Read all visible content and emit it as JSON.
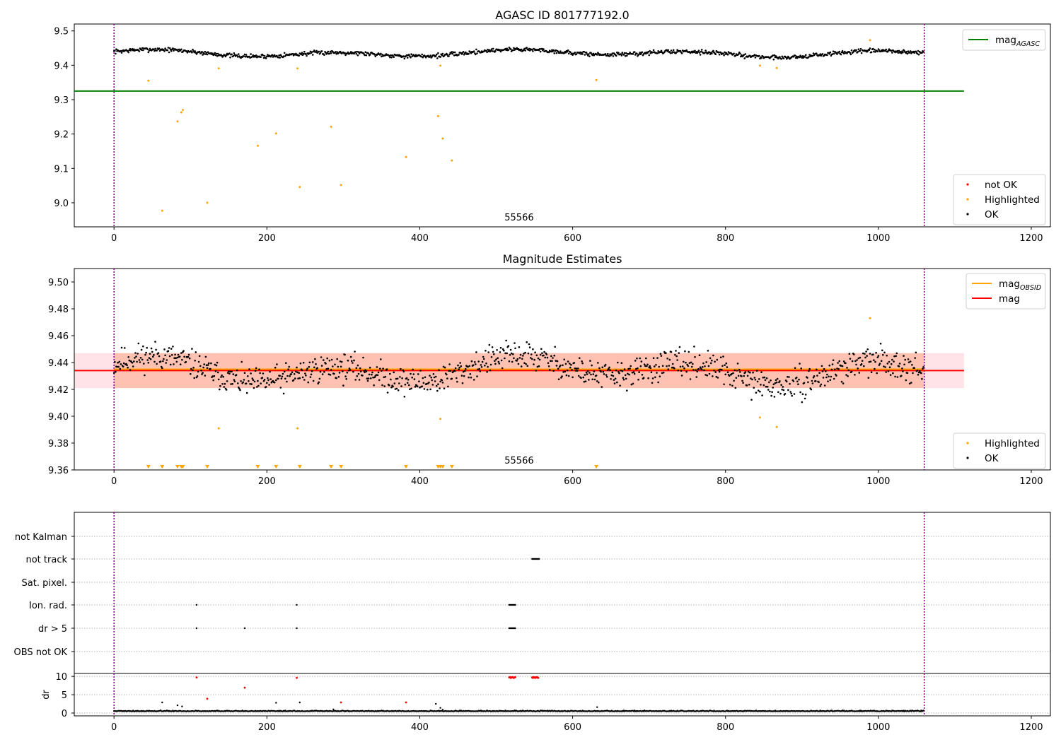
{
  "colors": {
    "ok": "#000000",
    "highlighted": "#ffa500",
    "not_ok": "#ff0000",
    "mag_agasc": "#008000",
    "mag_obsid": "#ffa500",
    "mag": "#ff0000",
    "obs_boundary": "#800080",
    "band_outer": "#ffc0cb",
    "band_inner": "#ffa07a"
  },
  "chart_data": [
    {
      "type": "scatter",
      "title": "AGASC ID 801777192.0",
      "xlim": [
        -52,
        1225
      ],
      "ylim": [
        8.93,
        9.52
      ],
      "x_ticks": [
        0,
        200,
        400,
        600,
        800,
        1000,
        1200
      ],
      "y_ticks": [
        9.0,
        9.1,
        9.2,
        9.3,
        9.4,
        9.5
      ],
      "y_tick_labels": [
        "9.0",
        "9.1",
        "9.2",
        "9.3",
        "9.4",
        "9.5"
      ],
      "obs_boundaries": [
        0,
        1060
      ],
      "obsid_annotation": {
        "text": "55566",
        "x": 530
      },
      "hlines": [
        {
          "name": "magAGASC",
          "y": 9.325,
          "x_range": [
            -52,
            1112
          ],
          "color": "#008000"
        }
      ],
      "ok_series": {
        "n": 1060,
        "mean": 9.435,
        "amplitude": 0.012,
        "noise": 0.009
      },
      "highlighted": {
        "x": [
          45,
          63,
          83,
          88,
          90,
          122,
          137,
          188,
          212,
          240,
          243,
          284,
          297,
          382,
          424,
          427,
          430,
          442,
          631,
          845,
          867,
          989
        ],
        "y": [
          9.355,
          8.977,
          9.237,
          9.263,
          9.27,
          9.0,
          9.391,
          9.166,
          9.202,
          9.391,
          9.046,
          9.221,
          9.052,
          9.133,
          9.252,
          9.399,
          9.187,
          9.123,
          9.357,
          9.399,
          9.392,
          9.473
        ]
      },
      "legend_upper": [
        {
          "label": "mag",
          "sub": "AGASC",
          "color": "#008000"
        }
      ],
      "legend_lower": [
        {
          "label": "not OK",
          "color": "#ff0000"
        },
        {
          "label": "Highlighted",
          "color": "#ffa500"
        },
        {
          "label": "OK",
          "color": "#000000"
        }
      ]
    },
    {
      "type": "scatter",
      "title": "Magnitude Estimates",
      "xlim": [
        -52,
        1225
      ],
      "ylim": [
        9.36,
        9.51
      ],
      "x_ticks": [
        0,
        200,
        400,
        600,
        800,
        1000,
        1200
      ],
      "y_ticks": [
        9.36,
        9.38,
        9.4,
        9.42,
        9.44,
        9.46,
        9.48,
        9.5
      ],
      "y_tick_labels": [
        "9.36",
        "9.38",
        "9.40",
        "9.42",
        "9.44",
        "9.46",
        "9.48",
        "9.50"
      ],
      "obs_boundaries": [
        0,
        1060
      ],
      "obsid_annotation": {
        "text": "55566",
        "x": 530
      },
      "bands": [
        {
          "y_range": [
            9.421,
            9.447
          ],
          "x_range": [
            -52,
            1112
          ],
          "color": "#ffc0cb"
        },
        {
          "y_range": [
            9.421,
            9.447
          ],
          "x_range": [
            0,
            1060
          ],
          "color": "#ffa07a"
        }
      ],
      "hlines": [
        {
          "name": "magOBSID",
          "y": 9.435,
          "x_range": [
            0,
            1060
          ],
          "color": "#ffa500"
        },
        {
          "name": "mag",
          "y": 9.434,
          "x_range": [
            -52,
            1112
          ],
          "color": "#ff0000"
        }
      ],
      "ok_series": {
        "n": 1060,
        "mean": 9.434,
        "amplitude": 0.012,
        "noise": 0.009
      },
      "highlighted": {
        "x": [
          137,
          240,
          427,
          845,
          867,
          989
        ],
        "y": [
          9.391,
          9.391,
          9.398,
          9.399,
          9.392,
          9.473
        ]
      },
      "clipped_markers_x": [
        45,
        63,
        83,
        88,
        90,
        122,
        188,
        212,
        243,
        284,
        297,
        382,
        424,
        427,
        430,
        442,
        631
      ],
      "legend_upper": [
        {
          "label": "mag",
          "sub": "OBSID",
          "color": "#ffa500"
        },
        {
          "label": "mag",
          "sub": "",
          "color": "#ff0000"
        }
      ],
      "legend_lower": [
        {
          "label": "Highlighted",
          "color": "#ffa500"
        },
        {
          "label": "OK",
          "color": "#000000"
        }
      ]
    },
    {
      "type": "scatter",
      "title": "",
      "xlim": [
        -52,
        1225
      ],
      "categories": [
        "not Kalman",
        "not track",
        "Sat. pixel.",
        "Ion. rad.",
        "dr > 5",
        "OBS not OK"
      ],
      "obs_boundaries": [
        0,
        1060
      ],
      "flags": [
        {
          "category": "not track",
          "x": [
            547,
            548,
            549,
            550,
            551,
            552,
            553,
            554,
            555,
            556
          ]
        },
        {
          "category": "Ion. rad.",
          "x": [
            108,
            239,
            517,
            518,
            519,
            520,
            521,
            522,
            523,
            524,
            525
          ]
        },
        {
          "category": "dr > 5",
          "x": [
            108,
            171,
            239,
            517,
            518,
            519,
            520,
            521,
            522,
            523,
            524,
            525
          ]
        }
      ]
    },
    {
      "type": "scatter",
      "title": "",
      "ylabel": "dr",
      "xlim": [
        -52,
        1225
      ],
      "ylim": [
        0,
        10.8
      ],
      "x_ticks": [
        0,
        200,
        400,
        600,
        800,
        1000,
        1200
      ],
      "y_ticks": [
        0,
        5,
        10
      ],
      "y_tick_labels": [
        "0",
        "5",
        "10"
      ],
      "obs_boundaries": [
        0,
        1060
      ],
      "ok_series": {
        "n": 1060,
        "mean": 0.45,
        "noise": 0.25
      },
      "ok_outliers": {
        "x": [
          63,
          83,
          89,
          212,
          243,
          287,
          421,
          427,
          430,
          632
        ],
        "y": [
          2.9,
          2.1,
          1.8,
          2.8,
          2.9,
          1.0,
          2.5,
          1.4,
          0.9,
          1.6
        ]
      },
      "not_ok": {
        "x": [
          108,
          122,
          171,
          239,
          297,
          382,
          517,
          518,
          519,
          520,
          521,
          522,
          523,
          524,
          525,
          547,
          548,
          549,
          550,
          551,
          552,
          553,
          554,
          555
        ],
        "y": [
          9.7,
          3.9,
          6.9,
          9.6,
          2.9,
          2.9,
          9.7,
          9.8,
          9.6,
          9.7,
          9.8,
          9.7,
          9.6,
          9.7,
          9.8,
          9.7,
          9.6,
          9.8,
          9.7,
          9.6,
          9.7,
          9.8,
          9.7,
          9.6
        ]
      }
    }
  ]
}
